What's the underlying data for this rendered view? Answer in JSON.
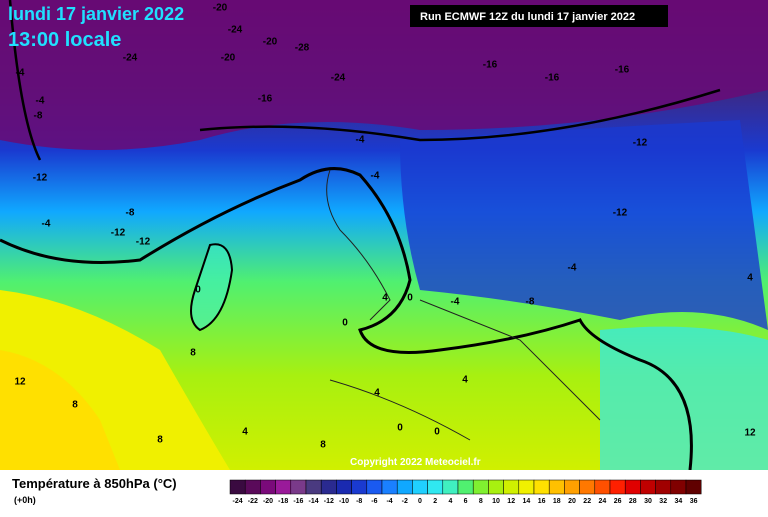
{
  "header": {
    "date": "lundi 17 janvier 2022",
    "time": "13:00 locale",
    "run": "Run ECMWF 12Z du lundi 17 janvier 2022"
  },
  "map": {
    "labels": [
      -24,
      -20,
      -24,
      -20,
      -20,
      -28,
      -24,
      -16,
      -16,
      -16,
      -16,
      -12,
      -8,
      -4,
      -8,
      -4,
      -4,
      -12,
      -12,
      -12,
      -12,
      -4,
      -4,
      0,
      0,
      4,
      0,
      -4,
      -8,
      -4,
      4,
      8,
      12,
      8,
      4,
      4,
      0,
      0,
      8,
      4,
      12,
      8
    ],
    "copyright": "Copyright 2022 Meteociel.fr"
  },
  "legend": {
    "title": "Température à 850hPa (°C)",
    "step": "(+0h)",
    "ticks": [
      -24,
      -22,
      -20,
      -18,
      -16,
      -14,
      -12,
      -10,
      -8,
      -6,
      -4,
      -2,
      0,
      2,
      4,
      6,
      8,
      10,
      12,
      14,
      16,
      18,
      20,
      22,
      24,
      26,
      28,
      30,
      32,
      34,
      36
    ],
    "colors": [
      "#3a0a40",
      "#5a0a5a",
      "#7a0a7a",
      "#9a1a9a",
      "#7a3a8a",
      "#4a3a80",
      "#2a2a90",
      "#1a2ab0",
      "#1a3ad0",
      "#1a5af0",
      "#1a80ff",
      "#10a8ff",
      "#20d0ff",
      "#30e8f0",
      "#40f0c0",
      "#50f070",
      "#80f030",
      "#a8f010",
      "#d0f000",
      "#f0f000",
      "#ffe000",
      "#ffc000",
      "#ffa000",
      "#ff7800",
      "#ff5000",
      "#ff2000",
      "#e00000",
      "#c00000",
      "#a00000",
      "#800000",
      "#600000"
    ]
  }
}
